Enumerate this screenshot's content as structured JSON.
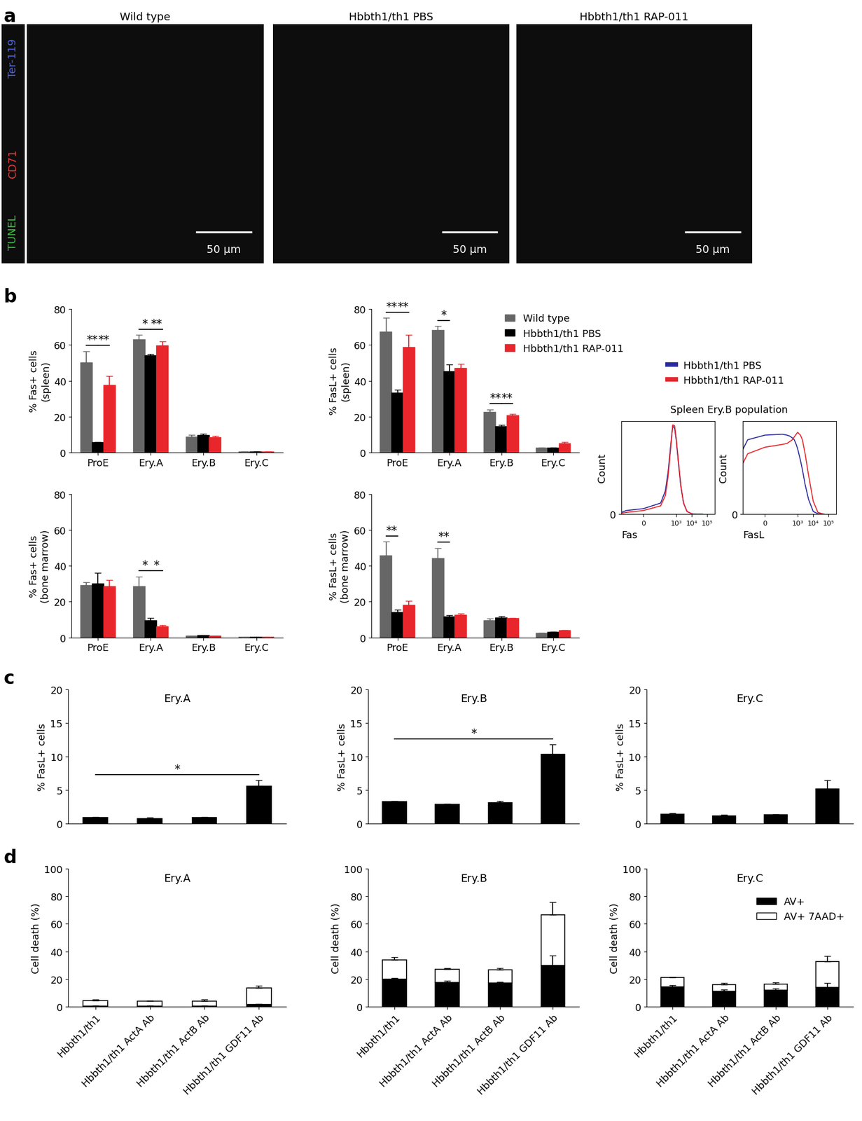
{
  "panel_labels": [
    "a",
    "b",
    "c",
    "d"
  ],
  "images": {
    "titles": [
      "Wild type",
      "Hbbth1/th1 PBS",
      "Hbbth1/th1 RAP-011"
    ],
    "channels": [
      {
        "name": "TUNEL",
        "color": "#3cc43c"
      },
      {
        "name": "CD71",
        "color": "#e33b3b"
      },
      {
        "name": "Ter-119",
        "color": "#4a63e0"
      }
    ],
    "scale_bar": "50 µm"
  },
  "chart_data": [
    {
      "type": "bar",
      "y_label": "% Fas+ cells\n(spleen)",
      "categories": [
        "ProE",
        "Ery.A",
        "Ery.B",
        "Ery.C"
      ],
      "series": [
        {
          "name": "Wild type",
          "color": "#666666",
          "values": [
            50,
            63,
            8.5,
            0.5
          ],
          "errors": [
            6.5,
            2.5,
            1.2,
            0.2
          ]
        },
        {
          "name": "Hbbth1/th1 PBS",
          "color": "#000000",
          "values": [
            5.5,
            54,
            9.5,
            0.5
          ],
          "errors": [
            0.5,
            1,
            1,
            0.2
          ]
        },
        {
          "name": "Hbbth1/th1 RAP-011",
          "color": "#e8262b",
          "values": [
            37.5,
            59.5,
            8.3,
            0.5
          ],
          "errors": [
            5,
            2.5,
            1,
            0.2
          ]
        }
      ],
      "ylim": [
        0,
        80
      ],
      "yticks": [
        0,
        20,
        40,
        60,
        80
      ],
      "significance": [
        {
          "category": "ProE",
          "pair": [
            "Wild type",
            "Hbbth1/th1 PBS"
          ],
          "label": "**"
        },
        {
          "category": "ProE",
          "pair": [
            "Hbbth1/th1 PBS",
            "Hbbth1/th1 RAP-011"
          ],
          "label": "**"
        },
        {
          "category": "Ery.A",
          "pair": [
            "Wild type",
            "Hbbth1/th1 PBS"
          ],
          "label": "*"
        },
        {
          "category": "Ery.A",
          "pair": [
            "Hbbth1/th1 PBS",
            "Hbbth1/th1 RAP-011"
          ],
          "label": "**"
        }
      ]
    },
    {
      "type": "bar",
      "y_label": "% FasL+ cells\n(spleen)",
      "categories": [
        "ProE",
        "Ery.A",
        "Ery.B",
        "Ery.C"
      ],
      "series": [
        {
          "name": "Wild type",
          "color": "#666666",
          "values": [
            67,
            68,
            22.5,
            2.5
          ],
          "errors": [
            8,
            2.5,
            1.5,
            0.4
          ]
        },
        {
          "name": "Hbbth1/th1 PBS",
          "color": "#000000",
          "values": [
            33,
            45,
            14.5,
            2.5
          ],
          "errors": [
            2,
            4,
            0.8,
            0.4
          ]
        },
        {
          "name": "Hbbth1/th1 RAP-011",
          "color": "#e8262b",
          "values": [
            58.5,
            47,
            20.5,
            5
          ],
          "errors": [
            7,
            2.5,
            1,
            0.8
          ]
        }
      ],
      "ylim": [
        0,
        80
      ],
      "yticks": [
        0,
        20,
        40,
        60,
        80
      ],
      "legend": "upper left",
      "significance": [
        {
          "category": "ProE",
          "pair": [
            "Wild type",
            "Hbbth1/th1 PBS"
          ],
          "label": "**"
        },
        {
          "category": "ProE",
          "pair": [
            "Hbbth1/th1 PBS",
            "Hbbth1/th1 RAP-011"
          ],
          "label": "**"
        },
        {
          "category": "Ery.A",
          "pair": [
            "Wild type",
            "Hbbth1/th1 PBS"
          ],
          "label": "*"
        },
        {
          "category": "Ery.B",
          "pair": [
            "Wild type",
            "Hbbth1/th1 PBS"
          ],
          "label": "**"
        },
        {
          "category": "Ery.B",
          "pair": [
            "Hbbth1/th1 PBS",
            "Hbbth1/th1 RAP-011"
          ],
          "label": "**"
        }
      ]
    },
    {
      "type": "bar",
      "y_label": "% Fas+ cells\n(bone marrow)",
      "categories": [
        "ProE",
        "Ery.A",
        "Ery.B",
        "Ery.C"
      ],
      "series": [
        {
          "name": "Wild type",
          "color": "#666666",
          "values": [
            29,
            28.5,
            0.7,
            0.2
          ],
          "errors": [
            2,
            5.5,
            0.2,
            0.1
          ]
        },
        {
          "name": "Hbbth1/th1 PBS",
          "color": "#000000",
          "values": [
            30,
            9.5,
            1,
            0.2
          ],
          "errors": [
            6,
            1.5,
            0.3,
            0.1
          ]
        },
        {
          "name": "Hbbth1/th1 RAP-011",
          "color": "#e8262b",
          "values": [
            28.5,
            6,
            0.7,
            0.2
          ],
          "errors": [
            3.5,
            1,
            0.2,
            0.1
          ]
        }
      ],
      "ylim": [
        0,
        80
      ],
      "yticks": [
        0,
        20,
        40,
        60,
        80
      ],
      "significance": [
        {
          "category": "Ery.A",
          "pair": [
            "Wild type",
            "Hbbth1/th1 PBS"
          ],
          "label": "*"
        },
        {
          "category": "Ery.A",
          "pair": [
            "Hbbth1/th1 PBS",
            "Hbbth1/th1 RAP-011"
          ],
          "label": "*"
        }
      ]
    },
    {
      "type": "bar",
      "y_label": "% FasL+ cells\n(bone marrow)",
      "categories": [
        "ProE",
        "Ery.A",
        "Ery.B",
        "Ery.C"
      ],
      "series": [
        {
          "name": "Wild type",
          "color": "#666666",
          "values": [
            45.5,
            44,
            9.5,
            2.5
          ],
          "errors": [
            8,
            6,
            1,
            0.3
          ]
        },
        {
          "name": "Hbbth1/th1 PBS",
          "color": "#000000",
          "values": [
            14,
            11.5,
            11,
            3
          ],
          "errors": [
            1.5,
            1,
            1,
            0.3
          ]
        },
        {
          "name": "Hbbth1/th1 RAP-011",
          "color": "#e8262b",
          "values": [
            18,
            12.5,
            10.5,
            4
          ],
          "errors": [
            2.5,
            1,
            0.5,
            0.3
          ]
        }
      ],
      "ylim": [
        0,
        80
      ],
      "yticks": [
        0,
        20,
        40,
        60,
        80
      ],
      "significance": [
        {
          "category": "ProE",
          "pair": [
            "Wild type",
            "Hbbth1/th1 PBS"
          ],
          "label": "**"
        },
        {
          "category": "Ery.A",
          "pair": [
            "Wild type",
            "Hbbth1/th1 PBS"
          ],
          "label": "**"
        }
      ]
    },
    {
      "type": "line",
      "title": "Spleen Ery.B population",
      "x_label": "Fas",
      "y_label": "Count",
      "log": "x",
      "legend": "upper left",
      "x": [
        -200,
        -100,
        0,
        100,
        200,
        300,
        450,
        600,
        800,
        1000,
        1500,
        2000,
        3000,
        5000,
        10000,
        20000,
        50000
      ],
      "series": [
        {
          "name": "Hbbth1/th1 PBS",
          "color": "#2b2b9c",
          "values": [
            2,
            4,
            6,
            12,
            25,
            45,
            75,
            95,
            92,
            80,
            50,
            30,
            12,
            3,
            0.5,
            0,
            0
          ]
        },
        {
          "name": "Hbbth1/th1 RAP-011",
          "color": "#e8262b",
          "values": [
            1,
            2,
            4,
            9,
            20,
            40,
            72,
            96,
            95,
            82,
            52,
            31,
            12,
            3,
            0.5,
            0,
            0
          ]
        }
      ],
      "xlim": [
        -200,
        300000
      ],
      "xticks": [
        {
          "value": 0,
          "label": "0"
        },
        {
          "value": 1000,
          "label": "10³"
        },
        {
          "value": 10000,
          "label": "10⁴"
        },
        {
          "value": 100000,
          "label": "10⁵"
        }
      ],
      "ylim": [
        0,
        100
      ],
      "yticks": [
        0
      ]
    },
    {
      "type": "line",
      "x_label": "FasL",
      "y_label": "Count",
      "log": "x",
      "x": [
        -200,
        -100,
        0,
        100,
        200,
        300,
        450,
        600,
        800,
        1000,
        1500,
        2000,
        3000,
        5000,
        10000,
        20000,
        50000
      ],
      "series": [
        {
          "name": "Hbbth1/th1 PBS",
          "color": "#2b2b9c",
          "values": [
            70,
            80,
            85,
            86,
            85,
            84,
            82,
            80,
            75,
            70,
            58,
            48,
            32,
            16,
            3,
            0.5,
            0
          ]
        },
        {
          "name": "Hbbth1/th1 RAP-011",
          "color": "#e8262b",
          "values": [
            55,
            65,
            72,
            75,
            76,
            78,
            80,
            83,
            86,
            88,
            85,
            80,
            65,
            42,
            14,
            2,
            0
          ]
        }
      ],
      "xlim": [
        -200,
        300000
      ],
      "xticks": [
        {
          "value": 0,
          "label": "0"
        },
        {
          "value": 1000,
          "label": "10³"
        },
        {
          "value": 10000,
          "label": "10⁴"
        },
        {
          "value": 100000,
          "label": "10⁵"
        }
      ],
      "ylim": [
        0,
        100
      ],
      "yticks": [
        0
      ]
    },
    {
      "type": "bar",
      "title": "Ery.A",
      "y_label": "% FasL+ cells",
      "categories": [
        null,
        null,
        null,
        null
      ],
      "tick_labels": "y",
      "series": [
        {
          "color": "#000000",
          "values": [
            0.9,
            0.8,
            0.9,
            5.6
          ],
          "errors": [
            0.1,
            0.1,
            0.1,
            0.9
          ]
        }
      ],
      "ylim": [
        0,
        20
      ],
      "yticks": [
        0,
        5,
        10,
        15,
        20
      ],
      "significance": [
        {
          "pair": [
            0,
            3
          ],
          "label": "*"
        }
      ]
    },
    {
      "type": "bar",
      "title": "Ery.B",
      "y_label": "% FasL+ cells",
      "categories": [
        null,
        null,
        null,
        null
      ],
      "tick_labels": "y",
      "series": [
        {
          "color": "#000000",
          "values": [
            3.3,
            2.9,
            3.1,
            10.3
          ],
          "errors": [
            0.1,
            0.1,
            0.3,
            1.5
          ]
        }
      ],
      "ylim": [
        0,
        20
      ],
      "yticks": [
        0,
        5,
        10,
        15,
        20
      ],
      "significance": [
        {
          "pair": [
            0,
            3
          ],
          "label": "*"
        }
      ]
    },
    {
      "type": "bar",
      "title": "Ery.C",
      "y_label": "% FasL+ cells",
      "categories": [
        null,
        null,
        null,
        null
      ],
      "tick_labels": "y",
      "series": [
        {
          "color": "#000000",
          "values": [
            1.4,
            1.2,
            1.3,
            5.2
          ],
          "errors": [
            0.2,
            0.1,
            0.1,
            1.3
          ]
        }
      ],
      "ylim": [
        0,
        20
      ],
      "yticks": [
        0,
        5,
        10,
        15,
        20
      ]
    },
    {
      "type": "bar",
      "title": "Ery.A",
      "y_label": "Cell death (%)",
      "stacked": true,
      "categories": [
        "Hbbth1/th1",
        "Hbbth1/th1 ActA Ab",
        "Hbbth1/th1 ActB Ab",
        "Hbbth1/th1 GDF11 Ab"
      ],
      "series": [
        {
          "name": "AV+",
          "color": "#000000",
          "values": [
            0.5,
            0.5,
            0.5,
            1.5
          ],
          "errors": [
            0.2,
            0.2,
            0.2,
            0.5
          ]
        },
        {
          "name": "AV+ 7AAD+",
          "color": "#ffffff",
          "values": [
            4,
            3.5,
            3.5,
            12
          ],
          "errors": [
            0.6,
            0.5,
            1,
            1.5
          ]
        }
      ],
      "ylim": [
        0,
        100
      ],
      "yticks": [
        0,
        20,
        40,
        60,
        80,
        100
      ]
    },
    {
      "type": "bar",
      "title": "Ery.B",
      "y_label": "Cell death (%)",
      "stacked": true,
      "categories": [
        "Hbbth1/th1",
        "Hbbth1/th1 ActA Ab",
        "Hbbth1/th1 ActB Ab",
        "Hbbth1/th1 GDF11 Ab"
      ],
      "series": [
        {
          "name": "AV+",
          "color": "#000000",
          "values": [
            20,
            17.5,
            17,
            30
          ],
          "errors": [
            0.5,
            1,
            1,
            7
          ]
        },
        {
          "name": "AV+ 7AAD+",
          "color": "#ffffff",
          "values": [
            14,
            9.5,
            9.5,
            36.5
          ],
          "errors": [
            2,
            1,
            1.5,
            9
          ]
        }
      ],
      "ylim": [
        0,
        100
      ],
      "yticks": [
        0,
        20,
        40,
        60,
        80,
        100
      ]
    },
    {
      "type": "bar",
      "title": "Ery.C",
      "y_label": "Cell death (%)",
      "stacked": true,
      "legend": "upper right",
      "categories": [
        "Hbbth1/th1",
        "Hbbth1/th1 ActA Ab",
        "Hbbth1/th1 ActB Ab",
        "Hbbth1/th1 GDF11 Ab"
      ],
      "series": [
        {
          "name": "AV+",
          "color": "#000000",
          "values": [
            14.5,
            11,
            12,
            14
          ],
          "errors": [
            1,
            1.5,
            1,
            3
          ]
        },
        {
          "name": "AV+ 7AAD+",
          "color": "#ffffff",
          "values": [
            6.5,
            5,
            4.5,
            18.5
          ],
          "errors": [
            0.5,
            1,
            1,
            4
          ]
        }
      ],
      "ylim": [
        0,
        100
      ],
      "yticks": [
        0,
        20,
        40,
        60,
        80,
        100
      ]
    }
  ]
}
